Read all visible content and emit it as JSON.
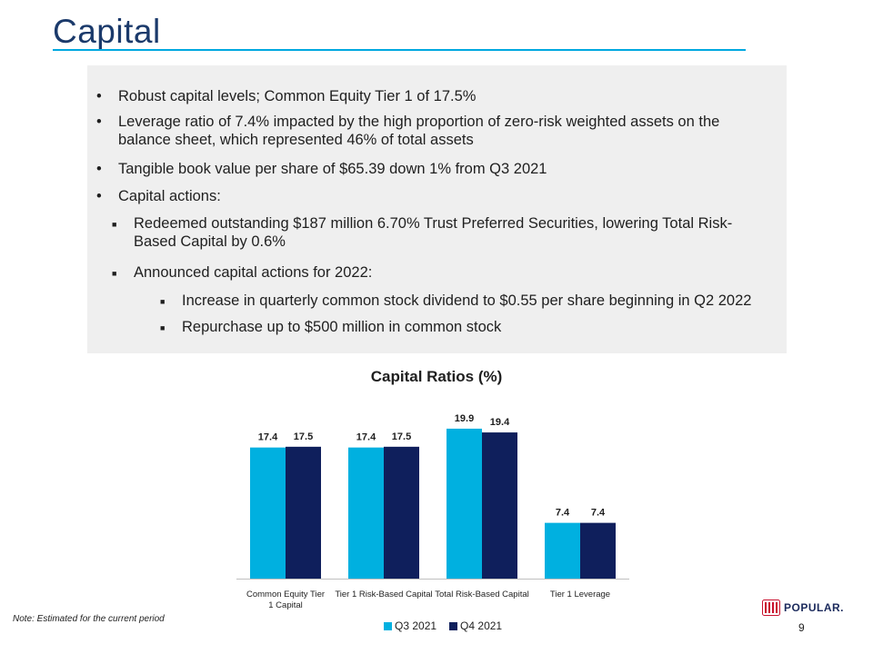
{
  "page": {
    "title": "Capital",
    "note": "Note: Estimated for the current period",
    "page_number": "9",
    "logo_text": "POPULAR."
  },
  "bullets": [
    {
      "level": 1,
      "text": "Robust capital levels; Common Equity Tier 1 of 17.5%"
    },
    {
      "level": 1,
      "text": "Leverage ratio of 7.4% impacted by the high proportion of zero-risk weighted assets on the balance sheet, which represented 46% of total assets"
    },
    {
      "level": 1,
      "text": "Tangible book value per share of $65.39 down 1% from Q3 2021"
    },
    {
      "level": 1,
      "text": "Capital actions:"
    },
    {
      "level": 2,
      "text": "Redeemed outstanding $187 million 6.70% Trust Preferred Securities, lowering Total Risk-Based Capital by 0.6%"
    },
    {
      "level": 2,
      "text": "Announced capital actions for 2022:"
    },
    {
      "level": 3,
      "text": "Increase in quarterly common stock dividend to $0.55 per share beginning in Q2 2022"
    },
    {
      "level": 3,
      "text": "Repurchase up to $500 million in common stock"
    }
  ],
  "chart_data": {
    "type": "bar",
    "title": "Capital Ratios (%)",
    "categories": [
      "Common Equity Tier 1 Capital",
      "Tier 1 Risk-Based Capital",
      "Total Risk-Based Capital",
      "Tier 1 Leverage"
    ],
    "series": [
      {
        "name": "Q3 2021",
        "values": [
          17.4,
          17.4,
          19.9,
          7.4
        ],
        "color": "#00b0e0"
      },
      {
        "name": "Q4 2021",
        "values": [
          17.5,
          17.5,
          19.4,
          7.4
        ],
        "color": "#0f1f5c"
      }
    ],
    "ylim": [
      0,
      21.7
    ],
    "grid": false,
    "legend": "bottom",
    "data_labels": true
  },
  "colors": {
    "title": "#1b3a6b",
    "accent_rule": "#00a8e0",
    "panel_bg": "#efefef"
  }
}
